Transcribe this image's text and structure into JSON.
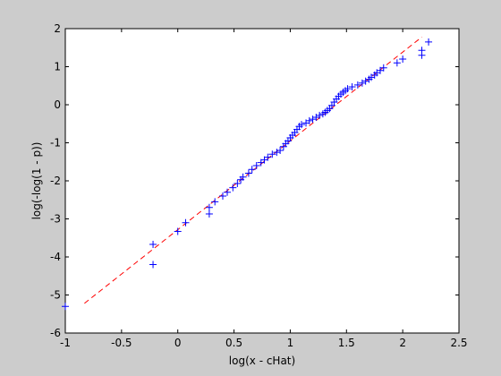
{
  "chart_data": {
    "type": "scatter",
    "title": "",
    "xlabel": "log(x - cHat)",
    "ylabel": "log(-log(1 - p))",
    "xlim": [
      -1,
      2.5
    ],
    "ylim": [
      -6,
      2
    ],
    "xticks": [
      -1,
      -0.5,
      0,
      0.5,
      1,
      1.5,
      2,
      2.5
    ],
    "xtick_labels": [
      "-1",
      "-0.5",
      "0",
      "0.5",
      "1",
      "1.5",
      "2",
      "2.5"
    ],
    "yticks": [
      -6,
      -5,
      -4,
      -3,
      -2,
      -1,
      0,
      1,
      2
    ],
    "ytick_labels": [
      "-6",
      "-5",
      "-4",
      "-3",
      "-2",
      "-1",
      "0",
      "1",
      "2"
    ],
    "grid": false,
    "legend": "none",
    "series": [
      {
        "marker": "+",
        "color": "#0000ff",
        "x": [
          -1.0,
          -0.22,
          -0.22,
          0.0,
          0.07,
          0.28,
          0.28,
          0.33,
          0.4,
          0.44,
          0.49,
          0.53,
          0.56,
          0.58,
          0.63,
          0.66,
          0.7,
          0.74,
          0.77,
          0.8,
          0.84,
          0.88,
          0.91,
          0.94,
          0.96,
          0.98,
          1.0,
          1.02,
          1.04,
          1.06,
          1.08,
          1.1,
          1.14,
          1.17,
          1.2,
          1.23,
          1.26,
          1.29,
          1.31,
          1.33,
          1.35,
          1.37,
          1.39,
          1.41,
          1.43,
          1.45,
          1.47,
          1.49,
          1.51,
          1.55,
          1.6,
          1.64,
          1.67,
          1.7,
          1.72,
          1.75,
          1.77,
          1.8,
          1.83,
          1.95,
          2.0,
          2.17,
          2.17,
          2.23
        ],
        "y": [
          -5.3,
          -4.2,
          -3.67,
          -3.33,
          -3.1,
          -2.87,
          -2.7,
          -2.55,
          -2.4,
          -2.3,
          -2.18,
          -2.07,
          -1.97,
          -1.9,
          -1.8,
          -1.7,
          -1.6,
          -1.52,
          -1.45,
          -1.38,
          -1.3,
          -1.25,
          -1.2,
          -1.1,
          -1.02,
          -0.95,
          -0.87,
          -0.8,
          -0.73,
          -0.65,
          -0.57,
          -0.52,
          -0.48,
          -0.42,
          -0.38,
          -0.33,
          -0.28,
          -0.24,
          -0.2,
          -0.15,
          -0.1,
          -0.02,
          0.07,
          0.15,
          0.22,
          0.28,
          0.33,
          0.37,
          0.42,
          0.47,
          0.52,
          0.57,
          0.62,
          0.67,
          0.72,
          0.78,
          0.84,
          0.9,
          0.97,
          1.1,
          1.2,
          1.3,
          1.43,
          1.65
        ]
      },
      {
        "style": "dashed-line",
        "color": "#ff0000",
        "x": [
          -0.83,
          2.17
        ],
        "y": [
          -5.22,
          1.78
        ]
      }
    ]
  }
}
